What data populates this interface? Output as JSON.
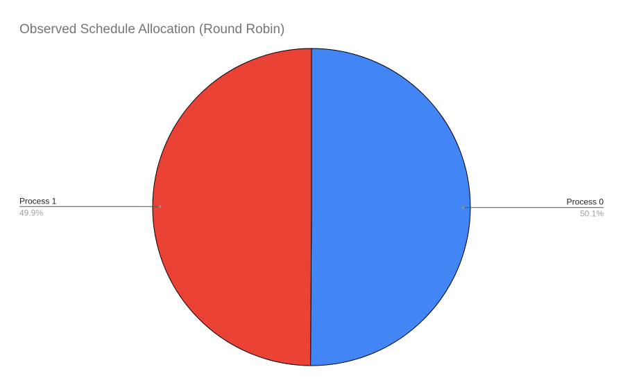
{
  "chart_data": {
    "type": "pie",
    "title": "Observed Schedule Allocation (Round Robin)",
    "slices": [
      {
        "label": "Process 0",
        "value": 50.1,
        "percent_label": "50.1%",
        "color": "#4285f4"
      },
      {
        "label": "Process 1",
        "value": 49.9,
        "percent_label": "49.9%",
        "color": "#ea4335"
      }
    ],
    "start_angle_deg": 0,
    "direction": "clockwise",
    "legend": "none"
  }
}
